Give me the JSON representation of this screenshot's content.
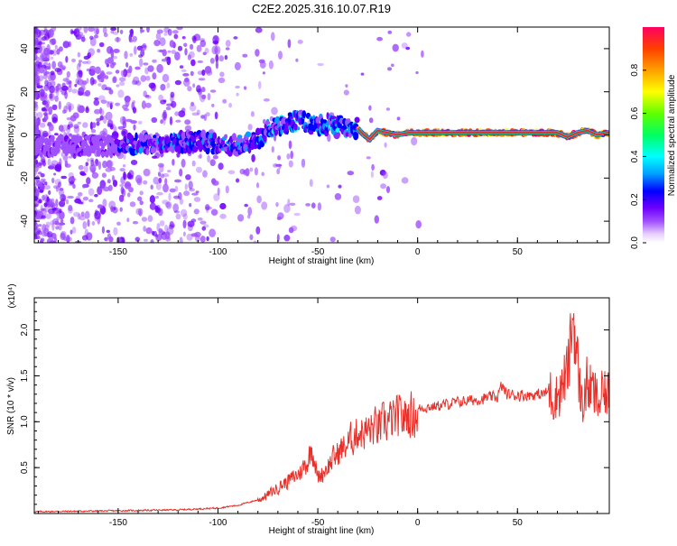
{
  "page": {
    "title": "C2E2.2025.316.10.07.R19"
  },
  "chart_data": [
    {
      "type": "heatmap",
      "title": "C2E2.2025.316.10.07.R19",
      "xlabel": "Height of straight line (km)",
      "ylabel": "Frequency (Hz)",
      "xlim": [
        -192,
        96
      ],
      "ylim": [
        -50,
        50
      ],
      "xticks": [
        -150,
        -100,
        -50,
        0,
        50
      ],
      "yticks": [
        -40,
        -20,
        0,
        20,
        40
      ],
      "grid": false,
      "colorbar": {
        "label": "Normalized spectral amplitude",
        "range": [
          0,
          1
        ],
        "ticks": [
          "0.0",
          "0.2",
          "0.4",
          "0.6",
          "0.8"
        ],
        "colormap": "rainbow",
        "colors": [
          "#ffffff",
          "#a050ff",
          "#7000ff",
          "#0000ff",
          "#00a0ff",
          "#00ffff",
          "#00ff60",
          "#60ff00",
          "#ffff00",
          "#ffa000",
          "#ff4000",
          "#ff0060"
        ]
      },
      "ridge": {
        "x": [
          -150,
          -140,
          -130,
          -120,
          -110,
          -100,
          -90,
          -80,
          -75,
          -70,
          -60,
          -50,
          -45,
          -40,
          -35,
          -30,
          -27,
          -24,
          -20,
          -15,
          -10,
          -5,
          0,
          20,
          40,
          60,
          70,
          75,
          80,
          85,
          90,
          95
        ],
        "y": [
          -5,
          -4,
          -4,
          -3,
          -3,
          -4,
          -5,
          -2,
          2,
          4,
          7,
          4,
          5,
          5,
          4,
          3,
          0,
          -2,
          2,
          1,
          0,
          1,
          1,
          1,
          1,
          1,
          1,
          -1,
          1,
          2,
          0,
          1
        ]
      }
    },
    {
      "type": "line",
      "xlabel": "Height of straight line (km)",
      "ylabel": "SNR (10 * v/v)",
      "yscale_label": "(x10⁴)",
      "xlim": [
        -192,
        96
      ],
      "ylim": [
        0,
        2.35
      ],
      "xticks": [
        -150,
        -100,
        -50,
        0,
        50
      ],
      "yticks": [
        0.5,
        1.0,
        1.5,
        2.0
      ],
      "ytick_labels": [
        "0.5",
        "1.0",
        "1.5",
        "2.0"
      ],
      "grid": false,
      "series": [
        {
          "color": "#e8302a",
          "envelope": {
            "x": [
              -192,
              -150,
              -120,
              -100,
              -90,
              -80,
              -75,
              -70,
              -60,
              -55,
              -53,
              -50,
              -45,
              -40,
              -35,
              -30,
              -25,
              -20,
              -15,
              -10,
              -5,
              0,
              10,
              20,
              30,
              40,
              42,
              45,
              50,
              60,
              65,
              70,
              75,
              78,
              80,
              82,
              85,
              88,
              90,
              93,
              96
            ],
            "y": [
              0.02,
              0.03,
              0.04,
              0.06,
              0.09,
              0.15,
              0.22,
              0.3,
              0.45,
              0.6,
              0.78,
              0.4,
              0.55,
              0.7,
              0.8,
              0.95,
              0.95,
              1.0,
              1.05,
              1.1,
              1.13,
              1.15,
              1.18,
              1.22,
              1.25,
              1.28,
              1.4,
              1.3,
              1.3,
              1.3,
              1.32,
              1.3,
              1.5,
              2.2,
              1.6,
              1.2,
              1.4,
              1.3,
              1.2,
              1.3,
              1.25
            ]
          }
        }
      ]
    }
  ]
}
